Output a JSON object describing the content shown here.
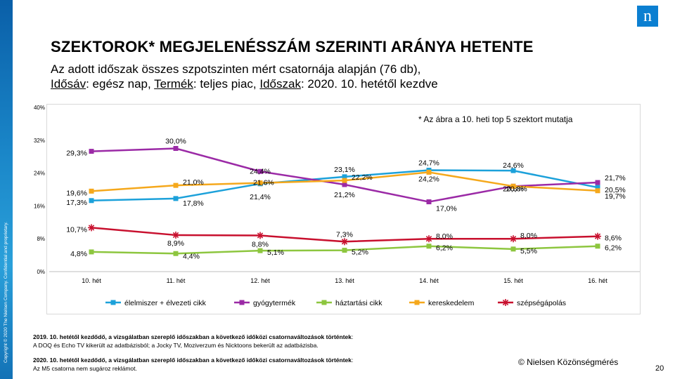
{
  "side": {
    "copyright": "Copyright © 2020 The Nielsen Company. Confidential and proprietary."
  },
  "logo": {
    "letter": "n"
  },
  "header": {
    "title": "SZEKTOROK*  MEGJELENÉSSZÁM SZERINTI ARÁNYA  HETENTE",
    "subtitle_line1": "Az adott időszak összes szpotszinten mért csatornája alapján (76 db),",
    "sub_k1": "Idősáv",
    "sub_v1": ": egész nap, ",
    "sub_k2": "Termék",
    "sub_v2": ": teljes piac, ",
    "sub_k3": "Időszak",
    "sub_v3": ": 2020. 10. hetétől kezdve"
  },
  "chart_data": {
    "type": "line",
    "categories": [
      "10. hét",
      "11. hét",
      "12. hét",
      "13. hét",
      "14. hét",
      "15. hét",
      "16. hét"
    ],
    "y_ticks": [
      "0%",
      "8%",
      "16%",
      "24%",
      "32%",
      "40%"
    ],
    "ylim": [
      0,
      40
    ],
    "grid": false,
    "legend_position": "bottom",
    "annotation": "* Az ábra a 10. heti top 5 szektort mutatja",
    "series": [
      {
        "name": "élelmiszer + élvezeti cikk",
        "color": "#1ca1da",
        "marker": "square",
        "values": [
          17.3,
          17.8,
          21.4,
          23.1,
          24.7,
          24.6,
          20.5
        ],
        "labels": [
          "17,3%",
          "17,8%",
          "21,4%",
          "23,1%",
          "24,7%",
          "24,6%",
          "20,5%"
        ]
      },
      {
        "name": "gyógytermék",
        "color": "#9b2aa6",
        "marker": "square",
        "values": [
          29.3,
          30.0,
          24.4,
          21.2,
          17.0,
          20.8,
          21.7
        ],
        "labels": [
          "29,3%",
          "30,0%",
          "24,4%",
          "21,2%",
          "17,0%",
          "20,8%",
          "21,7%"
        ]
      },
      {
        "name": "háztartási cikk",
        "color": "#8dc63f",
        "marker": "square",
        "values": [
          4.8,
          4.4,
          5.1,
          5.2,
          6.2,
          5.5,
          6.2
        ],
        "labels": [
          "4,8%",
          "4,4%",
          "5,1%",
          "5,2%",
          "6,2%",
          "5,5%",
          "6,2%"
        ]
      },
      {
        "name": "kereskedelem",
        "color": "#f5a81c",
        "marker": "square",
        "values": [
          19.6,
          21.0,
          21.6,
          22.2,
          24.2,
          20.8,
          19.7
        ],
        "labels": [
          "19,6%",
          "21,0%",
          "21,6%",
          "22,2%",
          "24,2%",
          "20,8%",
          "19,7%"
        ]
      },
      {
        "name": "szépségápolás",
        "color": "#c8102e",
        "marker": "star",
        "values": [
          10.7,
          8.9,
          8.8,
          7.3,
          8.0,
          8.0,
          8.6
        ],
        "labels": [
          "10,7%",
          "8,9%",
          "8,8%",
          "7,3%",
          "8,0%",
          "8,0%",
          "8,6%"
        ]
      }
    ]
  },
  "footnotes": {
    "f1_bold": "2019. 10. hetétől kezdődő, a vizsgálatban szereplő időszakban a következő időközi csatornaváltozások történtek",
    "f1_colon": ":",
    "f1_text": "A DOQ  és Echo TV kikerült az adatbázisból; a Jocky TV, Moziverzum és Nicktoons bekerült az adatbázisba.",
    "f2_bold": "2020. 10. hetétől kezdődő, a vizsgálatban szereplő időszakban a következő időközi csatornaváltozások történtek",
    "f2_colon": ":",
    "f2_text": "Az M5 csatorna nem sugároz reklámot."
  },
  "footer": {
    "copyright": "© Nielsen Közönségmérés",
    "page": "20"
  }
}
